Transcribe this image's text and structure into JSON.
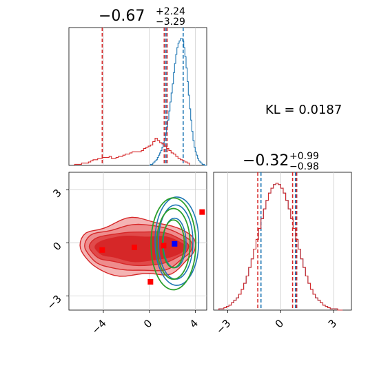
{
  "chart_data": [
    {
      "type": "histogram",
      "panel": "x-marginal",
      "title": {
        "main": "−0.67",
        "sup": "+2.24",
        "sub": "−3.29"
      },
      "xlim": [
        -7,
        5
      ],
      "grid": true,
      "series": [
        {
          "name": "",
          "color": "#d62728",
          "bin_edges": [
            -6.5,
            3.5
          ],
          "bins": 50,
          "values": [
            1,
            1,
            1,
            2,
            2,
            2,
            3,
            4,
            5,
            5,
            6,
            6,
            7,
            7,
            7,
            8,
            6,
            6,
            7,
            8,
            8,
            9,
            10,
            10,
            11,
            12,
            12,
            12,
            12,
            13,
            15,
            16,
            17,
            18,
            21,
            24,
            22,
            20,
            19,
            17,
            15,
            13,
            11,
            10,
            8,
            6,
            5,
            4,
            3,
            2
          ],
          "quantile_lines": [
            -4.1,
            1.3,
            1.55
          ]
        },
        {
          "name": "",
          "color": "#1f77b4",
          "bin_edges": [
            0.0,
            5.0
          ],
          "bins": 50,
          "values": [
            0,
            1,
            1,
            2,
            3,
            4,
            5,
            7,
            9,
            11,
            13,
            16,
            20,
            24,
            28,
            34,
            40,
            48,
            56,
            64,
            72,
            82,
            90,
            98,
            104,
            108,
            110,
            112,
            112,
            110,
            104,
            96,
            86,
            74,
            62,
            50,
            40,
            30,
            22,
            16,
            12,
            9,
            6,
            4,
            3,
            2,
            1,
            1,
            0,
            0
          ],
          "quantile_lines": [
            1.3,
            1.45,
            2.95
          ]
        }
      ]
    },
    {
      "type": "histogram",
      "panel": "y-marginal",
      "title": {
        "main": "−0.32",
        "sup": "+0.99",
        "sub": "−0.98"
      },
      "xlim": [
        -3.8,
        4.0
      ],
      "grid": true,
      "series": [
        {
          "name": "",
          "color": "#d62728",
          "bin_edges": [
            -3.5,
            3.5
          ],
          "bins": 50,
          "values": [
            1,
            1,
            2,
            3,
            4,
            6,
            8,
            10,
            13,
            17,
            22,
            28,
            35,
            42,
            50,
            58,
            67,
            75,
            83,
            90,
            96,
            100,
            103,
            104,
            103,
            100,
            96,
            90,
            83,
            75,
            67,
            58,
            50,
            42,
            35,
            28,
            22,
            17,
            13,
            10,
            8,
            6,
            4,
            3,
            2,
            1,
            1,
            1,
            0,
            0
          ],
          "quantile_lines": [
            -1.3,
            0.67,
            0.9
          ]
        },
        {
          "name": "",
          "color": "#1f77b4",
          "bin_edges": [
            -3.5,
            3.5
          ],
          "bins": 50,
          "values": [
            1,
            1,
            2,
            3,
            4,
            6,
            8,
            10,
            13,
            17,
            22,
            28,
            35,
            42,
            50,
            58,
            67,
            75,
            83,
            90,
            96,
            100,
            103,
            104,
            103,
            100,
            96,
            90,
            83,
            75,
            67,
            58,
            50,
            42,
            35,
            28,
            22,
            17,
            13,
            10,
            8,
            6,
            4,
            3,
            2,
            1,
            1,
            1,
            0,
            0
          ],
          "quantile_lines": [
            -1.12,
            0.83,
            0.9
          ]
        }
      ]
    },
    {
      "type": "contour",
      "panel": "joint",
      "xlim": [
        -7,
        5
      ],
      "ylim": [
        -3.8,
        4.0
      ],
      "xticks": [
        -4,
        0,
        4
      ],
      "yticks": [
        -3,
        0,
        3
      ],
      "xtick_labels": [
        "−4",
        "0",
        "4"
      ],
      "ytick_labels": [
        "−3",
        "0",
        "3"
      ],
      "grid": true,
      "markers": [
        {
          "x": -4.1,
          "y": -0.4,
          "color": "#ff0000",
          "shape": "square"
        },
        {
          "x": -1.3,
          "y": -0.25,
          "color": "#ff0000",
          "shape": "square"
        },
        {
          "x": 1.25,
          "y": -0.15,
          "color": "#ff0000",
          "shape": "square"
        },
        {
          "x": 0.1,
          "y": -2.2,
          "color": "#ff0000",
          "shape": "square"
        },
        {
          "x": 4.6,
          "y": 1.75,
          "color": "#ff0000",
          "shape": "square"
        },
        {
          "x": 2.2,
          "y": -0.05,
          "color": "#0000ff",
          "shape": "square"
        }
      ],
      "series": [
        {
          "name": "",
          "color": "#d62728",
          "kind": "filled-contour"
        },
        {
          "name": "",
          "color": "#1f77b4",
          "kind": "contour"
        },
        {
          "name": "",
          "color": "#2ca02c",
          "kind": "contour"
        }
      ]
    }
  ],
  "annotation": {
    "text": "KL = 0.0187"
  }
}
